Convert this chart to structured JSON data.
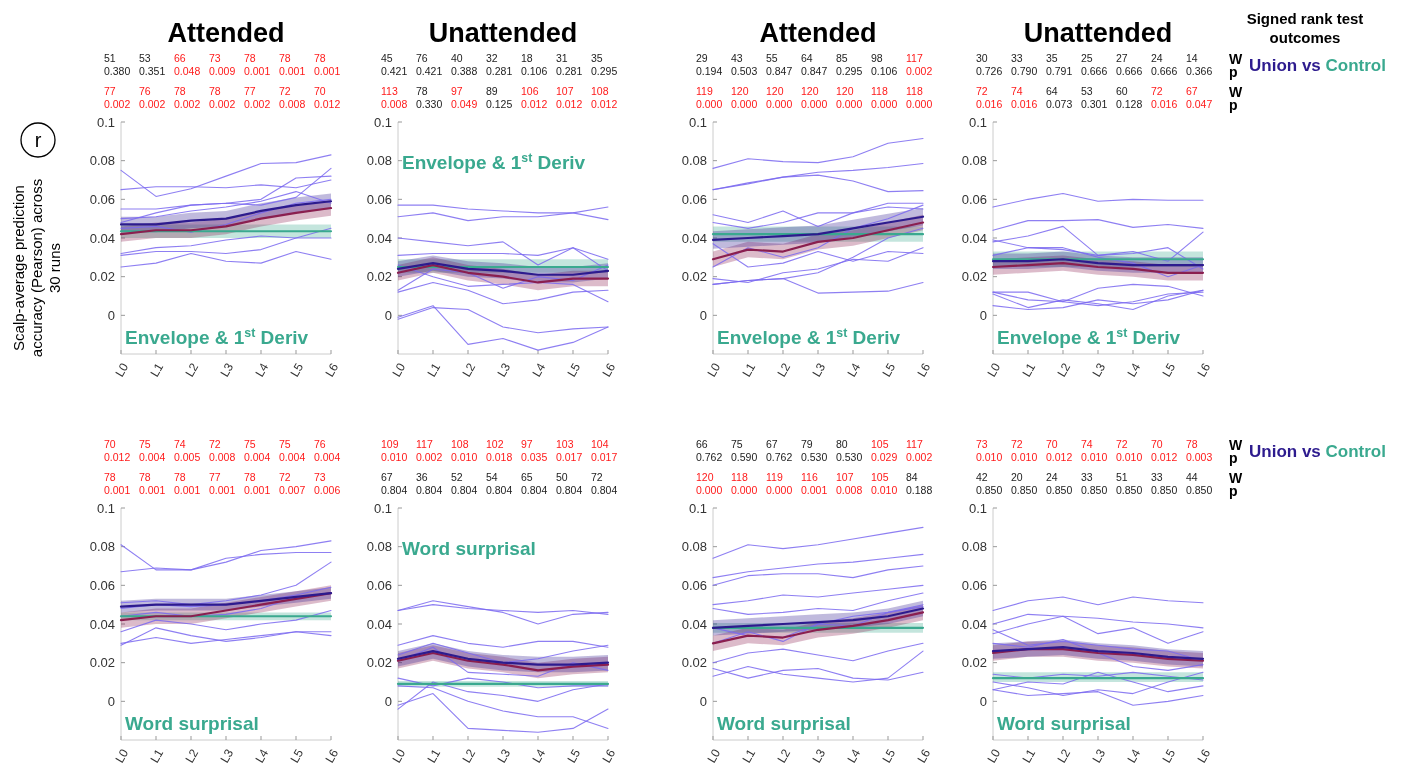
{
  "chart_data": [
    {
      "type": "line",
      "title": "Attended",
      "ylabel": "Scalp-average prediction accuracy (Pearson) across 30 runs",
      "categories": [
        "L0",
        "L1",
        "L2",
        "L3",
        "L4",
        "L5",
        "L6"
      ],
      "ylim": [
        -0.02,
        0.1
      ],
      "yticks": [
        0,
        0.02,
        0.04,
        0.06,
        0.08,
        0.1
      ],
      "annotations": [
        "Envelope & 1$^{st}$ Deriv",
        "51",
        "53",
        "66",
        "73",
        "78",
        "78",
        "78",
        "0.380",
        "0.351",
        "0.048",
        "0.009",
        "0.001",
        "0.001",
        "0.001",
        "77",
        "76",
        "78",
        "78",
        "77",
        "72",
        "70",
        "0.002",
        "0.002",
        "0.002",
        "0.002",
        "0.002",
        "0.008",
        "0.012",
        "r"
      ],
      "series": [
        {
          "color": "#7a68f0",
          "values": [
            0.075,
            0.0615,
            0.0655,
            0.072,
            0.0785,
            0.079,
            0.083
          ]
        },
        {
          "color": "#7a68f0",
          "values": [
            0.065,
            0.0665,
            0.0665,
            0.066,
            0.0675,
            0.066,
            0.07
          ]
        },
        {
          "color": "#7a68f0",
          "values": [
            0.055,
            0.055,
            0.057,
            0.058,
            0.06,
            0.071,
            0.072
          ]
        },
        {
          "color": "#7a68f0",
          "values": [
            0.048,
            0.053,
            0.057,
            0.058,
            0.057,
            0.061,
            0.076
          ]
        },
        {
          "color": "#7a68f0",
          "values": [
            0.05,
            0.051,
            0.054,
            0.056,
            0.059,
            0.064,
            0.058
          ]
        },
        {
          "color": "#7a68f0",
          "values": [
            0.045,
            0.046,
            0.043,
            0.047,
            0.053,
            0.058,
            0.06
          ]
        },
        {
          "color": "#7a68f0",
          "values": [
            0.032,
            0.035,
            0.036,
            0.039,
            0.041,
            0.04,
            0.045
          ]
        },
        {
          "color": "#7a68f0",
          "values": [
            0.031,
            0.033,
            0.033,
            0.032,
            0.034,
            0.04,
            0.04
          ]
        },
        {
          "color": "#7a68f0",
          "values": [
            0.025,
            0.027,
            0.032,
            0.028,
            0.027,
            0.033,
            0.029
          ]
        },
        {
          "color": "#3aa98f",
          "values": [
            0.0435,
            0.0435,
            0.0435,
            0.0435,
            0.0435,
            0.0435,
            0.0435
          ],
          "lower": [
            0.04,
            0.04,
            0.04,
            0.04,
            0.04,
            0.04,
            0.04
          ],
          "upper": [
            0.047,
            0.047,
            0.047,
            0.047,
            0.047,
            0.047,
            0.047
          ]
        },
        {
          "color": "#8a1f4f",
          "values": [
            0.042,
            0.044,
            0.044,
            0.046,
            0.05,
            0.053,
            0.0555
          ],
          "lower": [
            0.038,
            0.04,
            0.04,
            0.042,
            0.046,
            0.049,
            0.0515
          ],
          "upper": [
            0.046,
            0.048,
            0.048,
            0.05,
            0.054,
            0.057,
            0.0595
          ]
        },
        {
          "color": "#2d1b8e",
          "values": [
            0.047,
            0.047,
            0.049,
            0.05,
            0.054,
            0.057,
            0.059
          ],
          "lower": [
            0.043,
            0.043,
            0.045,
            0.046,
            0.05,
            0.053,
            0.055
          ],
          "upper": [
            0.051,
            0.051,
            0.053,
            0.054,
            0.058,
            0.061,
            0.063
          ]
        }
      ]
    },
    {
      "type": "line",
      "title": "Unattended",
      "categories": [
        "L0",
        "L1",
        "L2",
        "L3",
        "L4",
        "L5",
        "L6"
      ],
      "ylim": [
        -0.02,
        0.1
      ],
      "yticks": [
        0,
        0.02,
        0.04,
        0.06,
        0.08,
        0.1
      ],
      "annotations": [
        "Envelope & 1$^{st}$ Deriv",
        "45",
        "76",
        "40",
        "32",
        "18",
        "31",
        "35",
        "0.421",
        "0.421",
        "0.388",
        "0.281",
        "0.106",
        "0.281",
        "0.295",
        "113",
        "78",
        "97",
        "89",
        "106",
        "107",
        "108",
        "0.008",
        "0.330",
        "0.049",
        "0.125",
        "0.012",
        "0.012",
        "0.012"
      ],
      "series": [
        {
          "color": "#7a68f0",
          "values": [
            0.057,
            0.057,
            0.055,
            0.054,
            0.053,
            0.053,
            0.0495
          ]
        },
        {
          "color": "#7a68f0",
          "values": [
            0.051,
            0.053,
            0.049,
            0.051,
            0.051,
            0.053,
            0.056
          ]
        },
        {
          "color": "#7a68f0",
          "values": [
            0.04,
            0.038,
            0.036,
            0.038,
            0.026,
            0.035,
            0.023
          ]
        },
        {
          "color": "#7a68f0",
          "values": [
            0.031,
            0.032,
            0.032,
            0.032,
            0.031,
            0.035,
            0.029
          ]
        },
        {
          "color": "#7a68f0",
          "values": [
            0.013,
            0.024,
            0.022,
            0.014,
            0.02,
            0.018,
            0.026
          ]
        },
        {
          "color": "#7a68f0",
          "values": [
            0.012,
            0.017,
            0.013,
            0.006,
            0.008,
            0.012,
            0.013
          ]
        },
        {
          "color": "#7a68f0",
          "values": [
            -0.002,
            0.004,
            0.003,
            -0.006,
            -0.009,
            -0.007,
            -0.006
          ]
        },
        {
          "color": "#7a68f0",
          "values": [
            -0.001,
            0.005,
            -0.015,
            -0.012,
            -0.018,
            -0.014,
            -0.006
          ]
        },
        {
          "color": "#7a68f0",
          "values": [
            0.026,
            0.02,
            0.015,
            0.016,
            0.017,
            0.016,
            0.007
          ]
        },
        {
          "color": "#3aa98f",
          "values": [
            0.025,
            0.025,
            0.025,
            0.025,
            0.025,
            0.025,
            0.025
          ],
          "lower": [
            0.022,
            0.022,
            0.022,
            0.022,
            0.022,
            0.022,
            0.022
          ],
          "upper": [
            0.029,
            0.029,
            0.029,
            0.029,
            0.029,
            0.029,
            0.029
          ]
        },
        {
          "color": "#8a1f4f",
          "values": [
            0.022,
            0.026,
            0.022,
            0.02,
            0.017,
            0.019,
            0.019
          ],
          "lower": [
            0.018,
            0.022,
            0.018,
            0.016,
            0.013,
            0.015,
            0.015
          ],
          "upper": [
            0.026,
            0.03,
            0.026,
            0.024,
            0.021,
            0.023,
            0.023
          ]
        },
        {
          "color": "#2d1b8e",
          "values": [
            0.024,
            0.027,
            0.024,
            0.023,
            0.021,
            0.021,
            0.023
          ],
          "lower": [
            0.02,
            0.023,
            0.02,
            0.019,
            0.017,
            0.017,
            0.019
          ],
          "upper": [
            0.028,
            0.031,
            0.028,
            0.027,
            0.025,
            0.025,
            0.027
          ]
        }
      ]
    },
    {
      "type": "line",
      "title": "Attended",
      "categories": [
        "L0",
        "L1",
        "L2",
        "L3",
        "L4",
        "L5",
        "L6"
      ],
      "ylim": [
        -0.02,
        0.1
      ],
      "yticks": [
        0,
        0.02,
        0.04,
        0.06,
        0.08,
        0.1
      ],
      "annotations": [
        "Envelope & 1$^{st}$ Deriv",
        "29",
        "43",
        "55",
        "64",
        "85",
        "98",
        "117",
        "0.194",
        "0.503",
        "0.847",
        "0.847",
        "0.295",
        "0.106",
        "0.002",
        "119",
        "120",
        "120",
        "120",
        "120",
        "118",
        "118",
        "0.000",
        "0.000",
        "0.000",
        "0.000",
        "0.000",
        "0.000",
        "0.000"
      ],
      "series": [
        {
          "color": "#7a68f0",
          "values": [
            0.076,
            0.081,
            0.0795,
            0.079,
            0.082,
            0.089,
            0.0915
          ]
        },
        {
          "color": "#7a68f0",
          "values": [
            0.065,
            0.068,
            0.0715,
            0.074,
            0.075,
            0.0765,
            0.0785
          ]
        },
        {
          "color": "#7a68f0",
          "values": [
            0.065,
            0.0685,
            0.0715,
            0.0725,
            0.0695,
            0.064,
            0.0645
          ]
        },
        {
          "color": "#7a68f0",
          "values": [
            0.052,
            0.048,
            0.054,
            0.046,
            0.053,
            0.058,
            0.058
          ]
        },
        {
          "color": "#7a68f0",
          "values": [
            0.048,
            0.045,
            0.048,
            0.053,
            0.053,
            0.056,
            0.055
          ]
        },
        {
          "color": "#7a68f0",
          "values": [
            0.037,
            0.025,
            0.027,
            0.033,
            0.028,
            0.033,
            0.032
          ]
        },
        {
          "color": "#7a68f0",
          "values": [
            0.025,
            0.035,
            0.03,
            0.035,
            0.045,
            0.05,
            0.057
          ]
        },
        {
          "color": "#7a68f0",
          "values": [
            0.019,
            0.017,
            0.022,
            0.024,
            0.029,
            0.028,
            0.035
          ]
        },
        {
          "color": "#7a68f0",
          "values": [
            0.016,
            0.018,
            0.019,
            0.0115,
            0.012,
            0.0125,
            0.017
          ]
        },
        {
          "color": "#7a68f0",
          "values": [
            0.016,
            0.018,
            0.019,
            0.022,
            0.03,
            0.04,
            0.045
          ]
        },
        {
          "color": "#3aa98f",
          "values": [
            0.042,
            0.042,
            0.042,
            0.042,
            0.042,
            0.042,
            0.042
          ],
          "lower": [
            0.038,
            0.038,
            0.038,
            0.038,
            0.038,
            0.038,
            0.038
          ],
          "upper": [
            0.046,
            0.046,
            0.046,
            0.046,
            0.046,
            0.046,
            0.046
          ]
        },
        {
          "color": "#8a1f4f",
          "values": [
            0.029,
            0.034,
            0.033,
            0.038,
            0.04,
            0.044,
            0.048
          ],
          "lower": [
            0.025,
            0.03,
            0.029,
            0.034,
            0.036,
            0.04,
            0.044
          ],
          "upper": [
            0.033,
            0.038,
            0.037,
            0.042,
            0.044,
            0.048,
            0.052
          ]
        },
        {
          "color": "#2d1b8e",
          "values": [
            0.039,
            0.04,
            0.041,
            0.042,
            0.045,
            0.048,
            0.051
          ],
          "lower": [
            0.0345,
            0.0355,
            0.0365,
            0.0375,
            0.0405,
            0.0435,
            0.0465
          ],
          "upper": [
            0.0435,
            0.0445,
            0.0455,
            0.0465,
            0.0495,
            0.0525,
            0.0555
          ]
        }
      ]
    },
    {
      "type": "line",
      "title": "Unattended",
      "categories": [
        "L0",
        "L1",
        "L2",
        "L3",
        "L4",
        "L5",
        "L6"
      ],
      "ylim": [
        -0.02,
        0.1
      ],
      "yticks": [
        0,
        0.02,
        0.04,
        0.06,
        0.08,
        0.1
      ],
      "annotations": [
        "Envelope & 1$^{st}$ Deriv",
        "30",
        "33",
        "35",
        "25",
        "27",
        "24",
        "14",
        "0.726",
        "0.790",
        "0.791",
        "0.666",
        "0.666",
        "0.666",
        "0.366",
        "72",
        "74",
        "64",
        "53",
        "60",
        "72",
        "67",
        "0.016",
        "0.016",
        "0.073",
        "0.301",
        "0.128",
        "0.016",
        "0.047",
        "W",
        "p",
        "W",
        "p",
        "Union vs Control",
        "Signed rank test outcomes"
      ],
      "series": [
        {
          "color": "#7a68f0",
          "values": [
            0.056,
            0.06,
            0.063,
            0.059,
            0.06,
            0.0595,
            0.0595
          ]
        },
        {
          "color": "#7a68f0",
          "values": [
            0.044,
            0.049,
            0.049,
            0.0495,
            0.0455,
            0.047,
            0.045
          ]
        },
        {
          "color": "#7a68f0",
          "values": [
            0.038,
            0.041,
            0.046,
            0.031,
            0.033,
            0.028,
            0.043
          ]
        },
        {
          "color": "#7a68f0",
          "values": [
            0.039,
            0.035,
            0.034,
            0.031,
            0.032,
            0.035,
            0.024
          ]
        },
        {
          "color": "#7a68f0",
          "values": [
            0.031,
            0.035,
            0.035,
            0.03,
            0.027,
            0.02,
            0.026
          ]
        },
        {
          "color": "#7a68f0",
          "values": [
            0.012,
            0.012,
            0.007,
            0.014,
            0.016,
            0.015,
            0.01
          ]
        },
        {
          "color": "#7a68f0",
          "values": [
            0.011,
            0.004,
            0.008,
            0.006,
            0.003,
            0.01,
            0.013
          ]
        },
        {
          "color": "#7a68f0",
          "values": [
            0.005,
            0.003,
            0.004,
            0.008,
            0.006,
            0.008,
            0.013
          ]
        },
        {
          "color": "#7a68f0",
          "values": [
            0.012,
            0.008,
            0.007,
            0.005,
            0.007,
            0.011,
            0.012
          ]
        },
        {
          "color": "#3aa98f",
          "values": [
            0.029,
            0.029,
            0.029,
            0.029,
            0.029,
            0.029,
            0.029
          ],
          "lower": [
            0.025,
            0.025,
            0.025,
            0.025,
            0.025,
            0.025,
            0.025
          ],
          "upper": [
            0.033,
            0.033,
            0.033,
            0.033,
            0.033,
            0.033,
            0.033
          ]
        },
        {
          "color": "#8a1f4f",
          "values": [
            0.025,
            0.026,
            0.027,
            0.025,
            0.024,
            0.022,
            0.022
          ],
          "lower": [
            0.021,
            0.022,
            0.023,
            0.021,
            0.02,
            0.018,
            0.018
          ],
          "upper": [
            0.029,
            0.03,
            0.031,
            0.029,
            0.028,
            0.026,
            0.026
          ]
        },
        {
          "color": "#2d1b8e",
          "values": [
            0.028,
            0.028,
            0.029,
            0.027,
            0.026,
            0.026,
            0.026
          ],
          "lower": [
            0.024,
            0.024,
            0.025,
            0.023,
            0.022,
            0.022,
            0.022
          ],
          "upper": [
            0.032,
            0.032,
            0.033,
            0.031,
            0.03,
            0.03,
            0.03
          ]
        }
      ]
    },
    {
      "type": "line",
      "categories": [
        "L0",
        "L1",
        "L2",
        "L3",
        "L4",
        "L5",
        "L6"
      ],
      "ylim": [
        -0.02,
        0.1
      ],
      "yticks": [
        0,
        0.02,
        0.04,
        0.06,
        0.08,
        0.1
      ],
      "annotations": [
        "Word surprisal",
        "70",
        "75",
        "74",
        "72",
        "75",
        "75",
        "76",
        "0.012",
        "0.004",
        "0.005",
        "0.008",
        "0.004",
        "0.004",
        "0.004",
        "78",
        "78",
        "78",
        "77",
        "78",
        "72",
        "73",
        "0.001",
        "0.001",
        "0.001",
        "0.001",
        "0.001",
        "0.007",
        "0.006"
      ],
      "series": [
        {
          "color": "#7a68f0",
          "values": [
            0.081,
            0.068,
            0.068,
            0.072,
            0.078,
            0.08,
            0.083
          ]
        },
        {
          "color": "#7a68f0",
          "values": [
            0.067,
            0.069,
            0.068,
            0.074,
            0.076,
            0.077,
            0.077
          ]
        },
        {
          "color": "#7a68f0",
          "values": [
            0.051,
            0.052,
            0.05,
            0.052,
            0.055,
            0.06,
            0.072
          ]
        },
        {
          "color": "#7a68f0",
          "values": [
            0.048,
            0.05,
            0.049,
            0.05,
            0.052,
            0.055,
            0.059
          ]
        },
        {
          "color": "#7a68f0",
          "values": [
            0.044,
            0.046,
            0.044,
            0.045,
            0.048,
            0.054,
            0.056
          ]
        },
        {
          "color": "#7a68f0",
          "values": [
            0.036,
            0.042,
            0.04,
            0.037,
            0.04,
            0.042,
            0.047
          ]
        },
        {
          "color": "#7a68f0",
          "values": [
            0.029,
            0.038,
            0.034,
            0.031,
            0.033,
            0.036,
            0.036
          ]
        },
        {
          "color": "#7a68f0",
          "values": [
            0.03,
            0.033,
            0.03,
            0.032,
            0.034,
            0.036,
            0.034
          ]
        },
        {
          "color": "#3aa98f",
          "values": [
            0.044,
            0.044,
            0.044,
            0.044,
            0.044,
            0.044,
            0.044
          ],
          "lower": [
            0.042,
            0.042,
            0.042,
            0.042,
            0.042,
            0.042,
            0.042
          ],
          "upper": [
            0.046,
            0.046,
            0.046,
            0.046,
            0.046,
            0.046,
            0.046
          ]
        },
        {
          "color": "#8a1f4f",
          "values": [
            0.042,
            0.044,
            0.044,
            0.047,
            0.05,
            0.053,
            0.056
          ],
          "lower": [
            0.038,
            0.04,
            0.04,
            0.043,
            0.046,
            0.049,
            0.052
          ],
          "upper": [
            0.046,
            0.048,
            0.048,
            0.051,
            0.054,
            0.057,
            0.06
          ]
        },
        {
          "color": "#2d1b8e",
          "values": [
            0.049,
            0.05,
            0.05,
            0.05,
            0.052,
            0.054,
            0.056
          ],
          "lower": [
            0.046,
            0.047,
            0.047,
            0.047,
            0.049,
            0.051,
            0.053
          ],
          "upper": [
            0.052,
            0.053,
            0.053,
            0.053,
            0.055,
            0.057,
            0.059
          ]
        }
      ]
    },
    {
      "type": "line",
      "categories": [
        "L0",
        "L1",
        "L2",
        "L3",
        "L4",
        "L5",
        "L6"
      ],
      "ylim": [
        -0.02,
        0.1
      ],
      "yticks": [
        0,
        0.02,
        0.04,
        0.06,
        0.08,
        0.1
      ],
      "annotations": [
        "Word surprisal",
        "109",
        "117",
        "108",
        "102",
        "97",
        "103",
        "104",
        "0.010",
        "0.002",
        "0.010",
        "0.018",
        "0.035",
        "0.017",
        "0.017",
        "67",
        "36",
        "52",
        "54",
        "65",
        "50",
        "72",
        "0.804",
        "0.804",
        "0.804",
        "0.804",
        "0.804",
        "0.804",
        "0.804"
      ],
      "series": [
        {
          "color": "#7a68f0",
          "values": [
            0.047,
            0.05,
            0.048,
            0.047,
            0.046,
            0.047,
            0.045
          ]
        },
        {
          "color": "#7a68f0",
          "values": [
            0.047,
            0.052,
            0.049,
            0.046,
            0.04,
            0.045,
            0.046
          ]
        },
        {
          "color": "#7a68f0",
          "values": [
            0.029,
            0.034,
            0.03,
            0.028,
            0.031,
            0.031,
            0.028
          ]
        },
        {
          "color": "#7a68f0",
          "values": [
            0.024,
            0.03,
            0.025,
            0.02,
            0.022,
            0.026,
            0.029
          ]
        },
        {
          "color": "#7a68f0",
          "values": [
            0.021,
            0.028,
            0.015,
            0.014,
            0.013,
            0.02,
            0.016
          ]
        },
        {
          "color": "#7a68f0",
          "values": [
            0.012,
            0.008,
            0.012,
            0.01,
            0.007,
            0.008,
            0.008
          ]
        },
        {
          "color": "#7a68f0",
          "values": [
            -0.004,
            0.01,
            0.005,
            0.003,
            0.0,
            0.006,
            0.009
          ]
        },
        {
          "color": "#7a68f0",
          "values": [
            -0.002,
            0.004,
            -0.014,
            -0.015,
            -0.016,
            -0.014,
            -0.004
          ]
        },
        {
          "color": "#7a68f0",
          "values": [
            0.008,
            0.007,
            0.0,
            -0.005,
            -0.008,
            -0.008,
            -0.014
          ]
        },
        {
          "color": "#3aa98f",
          "values": [
            0.009,
            0.009,
            0.009,
            0.009,
            0.009,
            0.009,
            0.009
          ],
          "lower": [
            0.0075,
            0.0075,
            0.0075,
            0.0075,
            0.0075,
            0.0075,
            0.0075
          ],
          "upper": [
            0.0105,
            0.0105,
            0.0105,
            0.0105,
            0.0105,
            0.0105,
            0.0105
          ]
        },
        {
          "color": "#8a1f4f",
          "values": [
            0.021,
            0.025,
            0.021,
            0.019,
            0.016,
            0.018,
            0.019
          ],
          "lower": [
            0.017,
            0.021,
            0.017,
            0.015,
            0.012,
            0.014,
            0.015
          ],
          "upper": [
            0.025,
            0.029,
            0.025,
            0.023,
            0.02,
            0.022,
            0.023
          ]
        },
        {
          "color": "#2d1b8e",
          "values": [
            0.022,
            0.026,
            0.022,
            0.02,
            0.019,
            0.019,
            0.02
          ],
          "lower": [
            0.018,
            0.022,
            0.018,
            0.016,
            0.015,
            0.015,
            0.016
          ],
          "upper": [
            0.026,
            0.03,
            0.026,
            0.024,
            0.023,
            0.023,
            0.024
          ]
        }
      ]
    },
    {
      "type": "line",
      "categories": [
        "L0",
        "L1",
        "L2",
        "L3",
        "L4",
        "L5",
        "L6"
      ],
      "ylim": [
        -0.02,
        0.1
      ],
      "yticks": [
        0,
        0.02,
        0.04,
        0.06,
        0.08,
        0.1
      ],
      "annotations": [
        "Word surprisal",
        "66",
        "75",
        "67",
        "79",
        "80",
        "105",
        "117",
        "0.762",
        "0.590",
        "0.762",
        "0.530",
        "0.530",
        "0.029",
        "0.002",
        "120",
        "118",
        "119",
        "116",
        "107",
        "105",
        "84",
        "0.000",
        "0.000",
        "0.000",
        "0.001",
        "0.008",
        "0.010",
        "0.188"
      ],
      "series": [
        {
          "color": "#7a68f0",
          "values": [
            0.074,
            0.081,
            0.079,
            0.081,
            0.084,
            0.087,
            0.09
          ]
        },
        {
          "color": "#7a68f0",
          "values": [
            0.064,
            0.067,
            0.069,
            0.071,
            0.072,
            0.074,
            0.076
          ]
        },
        {
          "color": "#7a68f0",
          "values": [
            0.06,
            0.065,
            0.066,
            0.066,
            0.064,
            0.068,
            0.07
          ]
        },
        {
          "color": "#7a68f0",
          "values": [
            0.05,
            0.052,
            0.055,
            0.054,
            0.056,
            0.058,
            0.06
          ]
        },
        {
          "color": "#7a68f0",
          "values": [
            0.048,
            0.045,
            0.046,
            0.048,
            0.047,
            0.052,
            0.056
          ]
        },
        {
          "color": "#7a68f0",
          "values": [
            0.038,
            0.034,
            0.033,
            0.04,
            0.039,
            0.046,
            0.05
          ]
        },
        {
          "color": "#7a68f0",
          "values": [
            0.03,
            0.036,
            0.031,
            0.04,
            0.044,
            0.046,
            0.049
          ]
        },
        {
          "color": "#7a68f0",
          "values": [
            0.02,
            0.025,
            0.027,
            0.024,
            0.021,
            0.026,
            0.03
          ]
        },
        {
          "color": "#7a68f0",
          "values": [
            0.017,
            0.012,
            0.016,
            0.017,
            0.012,
            0.011,
            0.015
          ]
        },
        {
          "color": "#7a68f0",
          "values": [
            0.013,
            0.018,
            0.014,
            0.012,
            0.01,
            0.012,
            0.026
          ]
        },
        {
          "color": "#3aa98f",
          "values": [
            0.038,
            0.038,
            0.038,
            0.038,
            0.038,
            0.038,
            0.038
          ],
          "lower": [
            0.0355,
            0.0355,
            0.0355,
            0.0355,
            0.0355,
            0.0355,
            0.0355
          ],
          "upper": [
            0.0405,
            0.0405,
            0.0405,
            0.0405,
            0.0405,
            0.0405,
            0.0405
          ]
        },
        {
          "color": "#8a1f4f",
          "values": [
            0.03,
            0.034,
            0.033,
            0.037,
            0.039,
            0.042,
            0.046
          ],
          "lower": [
            0.026,
            0.03,
            0.029,
            0.033,
            0.035,
            0.038,
            0.042
          ],
          "upper": [
            0.034,
            0.038,
            0.037,
            0.041,
            0.043,
            0.046,
            0.05
          ]
        },
        {
          "color": "#2d1b8e",
          "values": [
            0.038,
            0.039,
            0.04,
            0.041,
            0.042,
            0.044,
            0.048
          ],
          "lower": [
            0.034,
            0.035,
            0.036,
            0.037,
            0.038,
            0.04,
            0.044
          ],
          "upper": [
            0.042,
            0.043,
            0.044,
            0.045,
            0.046,
            0.048,
            0.052
          ]
        }
      ]
    },
    {
      "type": "line",
      "categories": [
        "L0",
        "L1",
        "L2",
        "L3",
        "L4",
        "L5",
        "L6"
      ],
      "ylim": [
        -0.02,
        0.1
      ],
      "yticks": [
        0,
        0.02,
        0.04,
        0.06,
        0.08,
        0.1
      ],
      "annotations": [
        "Word surprisal",
        "73",
        "72",
        "70",
        "74",
        "72",
        "70",
        "78",
        "0.010",
        "0.010",
        "0.012",
        "0.010",
        "0.010",
        "0.012",
        "0.003",
        "42",
        "20",
        "24",
        "33",
        "51",
        "33",
        "44",
        "0.850",
        "0.850",
        "0.850",
        "0.850",
        "0.850",
        "0.850",
        "0.850",
        "W",
        "p",
        "W",
        "p",
        "Union vs Control"
      ],
      "series": [
        {
          "color": "#7a68f0",
          "values": [
            0.047,
            0.052,
            0.054,
            0.05,
            0.054,
            0.052,
            0.051
          ]
        },
        {
          "color": "#7a68f0",
          "values": [
            0.04,
            0.045,
            0.044,
            0.043,
            0.041,
            0.04,
            0.038
          ]
        },
        {
          "color": "#7a68f0",
          "values": [
            0.035,
            0.04,
            0.044,
            0.035,
            0.038,
            0.03,
            0.036
          ]
        },
        {
          "color": "#7a68f0",
          "values": [
            0.037,
            0.029,
            0.031,
            0.029,
            0.027,
            0.026,
            0.021
          ]
        },
        {
          "color": "#7a68f0",
          "values": [
            0.03,
            0.028,
            0.032,
            0.025,
            0.018,
            0.016,
            0.019
          ]
        },
        {
          "color": "#7a68f0",
          "values": [
            0.01,
            0.007,
            0.003,
            0.006,
            0.004,
            0.01,
            0.015
          ]
        },
        {
          "color": "#7a68f0",
          "values": [
            0.006,
            0.003,
            0.004,
            0.005,
            -0.002,
            0.0,
            0.003
          ]
        },
        {
          "color": "#7a68f0",
          "values": [
            0.014,
            0.012,
            0.014,
            0.013,
            0.015,
            0.013,
            0.011
          ]
        },
        {
          "color": "#7a68f0",
          "values": [
            0.006,
            0.01,
            0.009,
            0.015,
            0.01,
            0.005,
            0.008
          ]
        },
        {
          "color": "#3aa98f",
          "values": [
            0.012,
            0.012,
            0.012,
            0.012,
            0.012,
            0.012,
            0.012
          ],
          "lower": [
            0.01,
            0.01,
            0.01,
            0.01,
            0.01,
            0.01,
            0.01
          ],
          "upper": [
            0.015,
            0.015,
            0.015,
            0.015,
            0.015,
            0.015,
            0.015
          ]
        },
        {
          "color": "#8a1f4f",
          "values": [
            0.025,
            0.027,
            0.027,
            0.025,
            0.024,
            0.022,
            0.021
          ],
          "lower": [
            0.021,
            0.023,
            0.023,
            0.021,
            0.02,
            0.018,
            0.017
          ],
          "upper": [
            0.029,
            0.031,
            0.031,
            0.029,
            0.028,
            0.026,
            0.025
          ]
        },
        {
          "color": "#2d1b8e",
          "values": [
            0.026,
            0.027,
            0.028,
            0.026,
            0.025,
            0.023,
            0.022
          ],
          "lower": [
            0.022,
            0.023,
            0.024,
            0.022,
            0.021,
            0.019,
            0.018
          ],
          "upper": [
            0.03,
            0.031,
            0.032,
            0.03,
            0.029,
            0.027,
            0.026
          ]
        }
      ]
    }
  ]
}
